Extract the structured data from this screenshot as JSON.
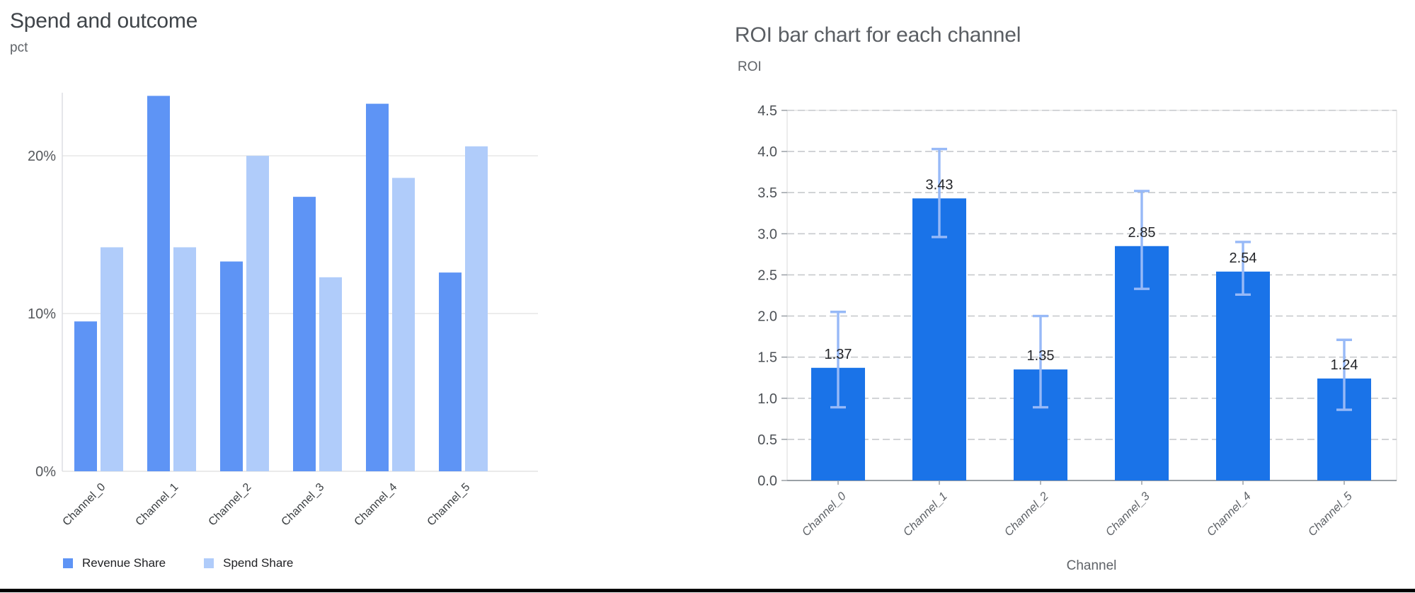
{
  "page": {
    "background": "#ffffff",
    "bottom_border_color": "#000000"
  },
  "chart_data": [
    {
      "type": "bar",
      "title": "Spend and outcome",
      "ylabel": "pct",
      "xlabel": "",
      "categories": [
        "Channel_0",
        "Channel_1",
        "Channel_2",
        "Channel_3",
        "Channel_4",
        "Channel_5"
      ],
      "series": [
        {
          "name": "Revenue Share",
          "color": "#5e94f5",
          "values": [
            9.5,
            23.8,
            13.3,
            17.4,
            23.3,
            12.6
          ]
        },
        {
          "name": "Spend Share",
          "color": "#b0ccfa",
          "values": [
            14.2,
            14.2,
            20.0,
            12.3,
            18.6,
            20.6
          ]
        }
      ],
      "yticks": [
        {
          "label": "0%",
          "value": 0
        },
        {
          "label": "10%",
          "value": 10
        },
        {
          "label": "20%",
          "value": 20
        }
      ],
      "ylim": [
        0,
        24
      ],
      "grid": "solid",
      "legend_position": "bottom",
      "colors": {
        "gridline": "#e4e4e4",
        "axis_line": "#dadce0",
        "tick_label": "#55585c",
        "category_label": "#3c4043",
        "title": "#3f4449",
        "axis_unit_label": "#5f6368",
        "legend_label": "#202124"
      }
    },
    {
      "type": "bar",
      "title": "ROI bar chart for each channel",
      "ylabel": "ROI",
      "xlabel": "Channel",
      "categories": [
        "Channel_0",
        "Channel_1",
        "Channel_2",
        "Channel_3",
        "Channel_4",
        "Channel_5"
      ],
      "values": [
        1.37,
        3.43,
        1.35,
        2.85,
        2.54,
        1.24
      ],
      "bar_labels": [
        "1.37",
        "3.43",
        "1.35",
        "2.85",
        "2.54",
        "1.24"
      ],
      "error_low": [
        0.89,
        2.96,
        0.89,
        2.33,
        2.26,
        0.86
      ],
      "error_high": [
        2.05,
        4.03,
        2.0,
        3.52,
        2.9,
        1.71
      ],
      "yticks": [
        "0.0",
        "0.5",
        "1.0",
        "1.5",
        "2.0",
        "2.5",
        "3.0",
        "3.5",
        "4.0",
        "4.5"
      ],
      "ylim": [
        0,
        4.5
      ],
      "grid": "dashed",
      "colors": {
        "bar": "#1a73e8",
        "error": "#97b9f7",
        "gridline": "#c7cacd",
        "plot_border": "#e2e2e2",
        "axis_line": "#9aa0a6",
        "tick_label": "#4d5156",
        "category_label": "#5f6368",
        "value_label": "#24262a",
        "title": "#5a5e63",
        "axis_label": "#5f6368"
      }
    }
  ]
}
